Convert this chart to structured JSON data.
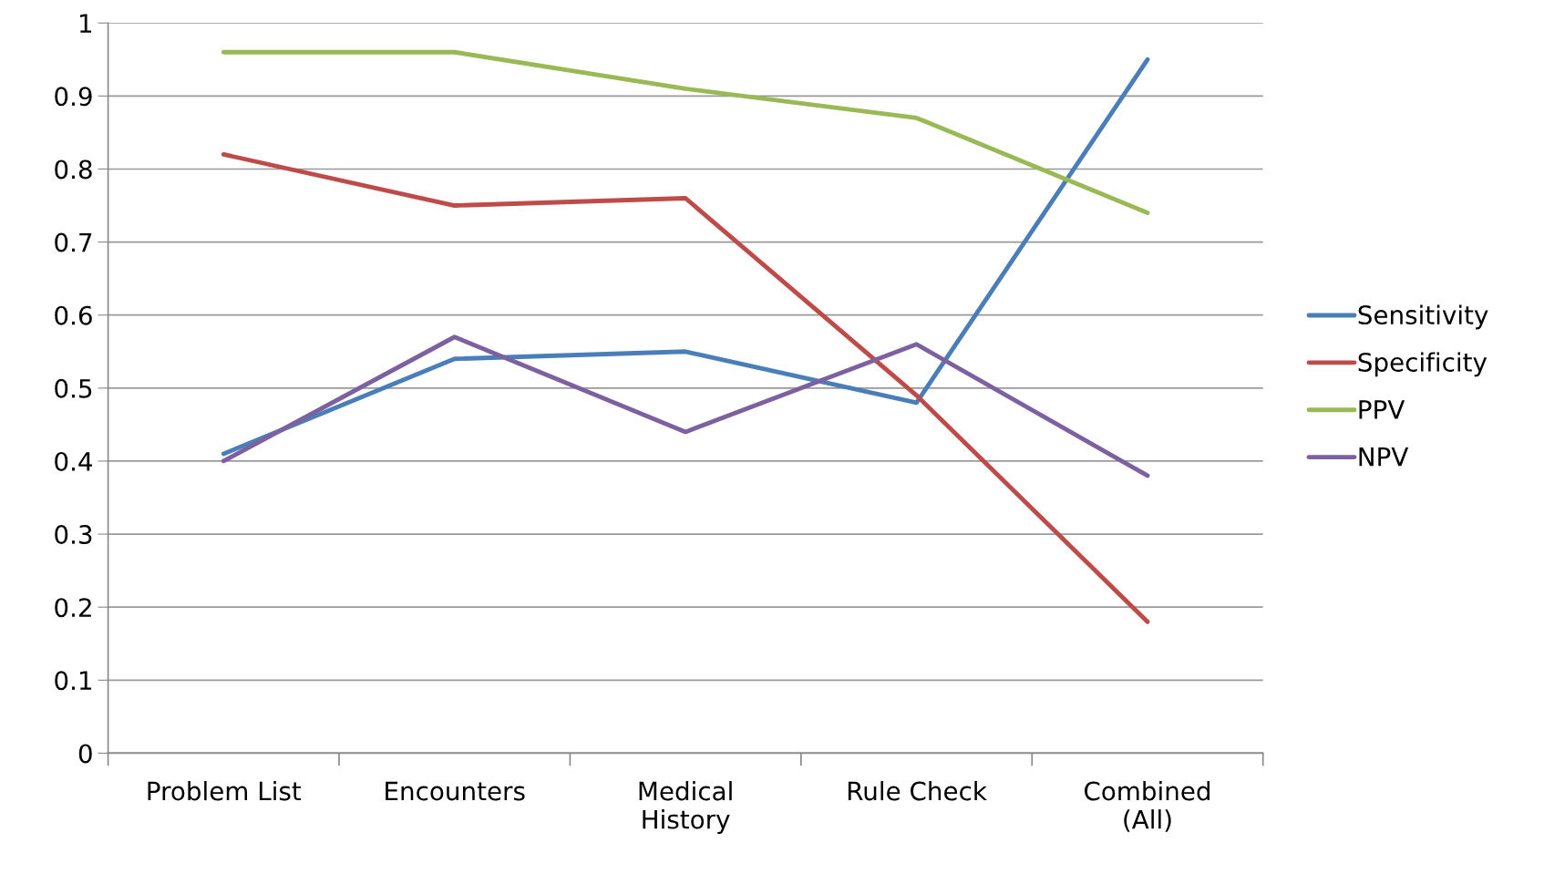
{
  "chart_data": {
    "type": "line",
    "categories": [
      "Problem List",
      "Encounters",
      "Medical\nHistory",
      "Rule Check",
      "Combined\n(All)"
    ],
    "series": [
      {
        "name": "Sensitivity",
        "color": "#4a7ebb",
        "values": [
          0.41,
          0.54,
          0.55,
          0.48,
          0.95
        ]
      },
      {
        "name": "Specificity",
        "color": "#be4b48",
        "values": [
          0.82,
          0.75,
          0.76,
          0.49,
          0.18
        ]
      },
      {
        "name": "PPV",
        "color": "#98b954",
        "values": [
          0.96,
          0.96,
          0.91,
          0.87,
          0.74
        ]
      },
      {
        "name": "NPV",
        "color": "#7d60a0",
        "values": [
          0.4,
          0.57,
          0.44,
          0.56,
          0.38
        ]
      }
    ],
    "ylim": [
      0,
      1
    ],
    "yticks": [
      0,
      0.1,
      0.2,
      0.3,
      0.4,
      0.5,
      0.6,
      0.7,
      0.8,
      0.9,
      1
    ],
    "grid": "y",
    "legend": "right",
    "marker": "none",
    "line_style": "solid"
  }
}
